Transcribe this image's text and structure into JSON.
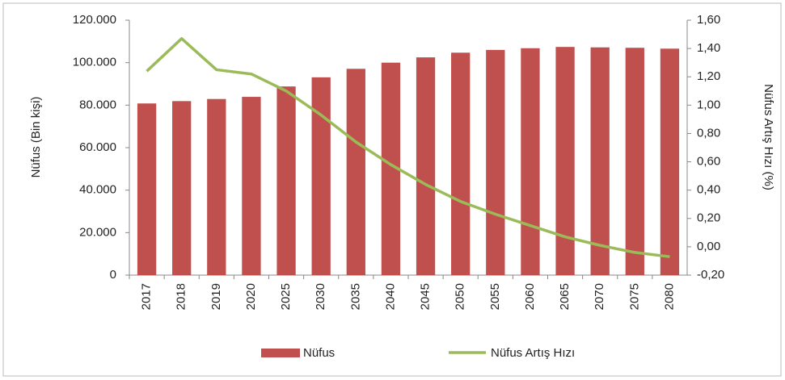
{
  "chart_data": {
    "type": "combo",
    "y_label": "Nüfus (Bin kişi)",
    "y2_label": "Nüfus Artış Hızı (%)",
    "categories": [
      "2017",
      "2018",
      "2019",
      "2020",
      "2025",
      "2030",
      "2035",
      "2040",
      "2045",
      "2050",
      "2055",
      "2060",
      "2065",
      "2070",
      "2075",
      "2080"
    ],
    "series": [
      {
        "name": "Nüfus",
        "type": "bar",
        "color": "#c0504d",
        "values": [
          80800,
          81900,
          82900,
          83900,
          88800,
          93100,
          97100,
          100000,
          102500,
          104700,
          106000,
          106800,
          107400,
          107200,
          107000,
          106600
        ]
      },
      {
        "name": "Nüfus Artış Hızı",
        "type": "line",
        "axis": "y2",
        "color": "#9bbb59",
        "values": [
          1.24,
          1.47,
          1.25,
          1.22,
          1.1,
          0.93,
          0.74,
          0.58,
          0.44,
          0.32,
          0.23,
          0.15,
          0.07,
          0.01,
          -0.04,
          -0.07
        ]
      }
    ],
    "ylim": [
      0,
      120000
    ],
    "yticks": [
      0,
      {
        "value": 20000,
        "label": "20.000"
      },
      {
        "value": 40000,
        "label": "40.000"
      },
      {
        "value": 60000,
        "label": "60.000"
      },
      {
        "value": 80000,
        "label": "80.000"
      },
      {
        "value": 100000,
        "label": "100.000"
      },
      {
        "value": 120000,
        "label": "120.000"
      }
    ],
    "y2lim": [
      -0.2,
      1.6
    ],
    "y2ticks": [
      {
        "value": -0.2,
        "label": "-0,20"
      },
      {
        "value": 0,
        "label": "0,00"
      },
      {
        "value": 0.2,
        "label": "0,20"
      },
      {
        "value": 0.4,
        "label": "0,40"
      },
      {
        "value": 0.6,
        "label": "0,60"
      },
      {
        "value": 0.8,
        "label": "0,80"
      },
      {
        "value": 1.0,
        "label": "1,00"
      },
      {
        "value": 1.2,
        "label": "1,20"
      },
      {
        "value": 1.4,
        "label": "1,40"
      },
      {
        "value": 1.6,
        "label": "1,60"
      }
    ],
    "grid": false,
    "legend": "bottom"
  }
}
